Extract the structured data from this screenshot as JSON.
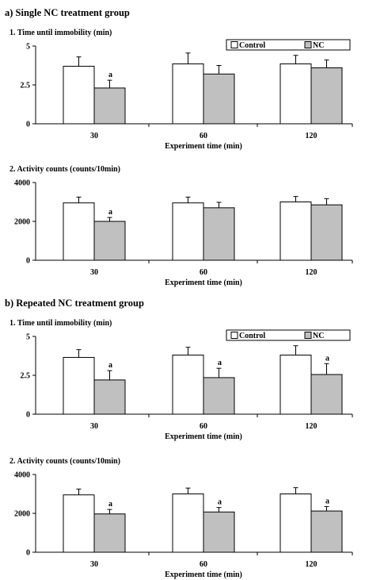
{
  "colors": {
    "control": "#ffffff",
    "nc": "#c0c0c0",
    "stroke": "#000000"
  },
  "sections": [
    {
      "title": "a) Single NC treatment group"
    },
    {
      "title": "b) Repeated NC treatment group"
    }
  ],
  "chart_data": [
    {
      "type": "bar",
      "subtitle": "1. Time until immobility (min)",
      "xlabel": "Experiment time (min)",
      "categories": [
        "30",
        "60",
        "120"
      ],
      "ylim": [
        0,
        5
      ],
      "yticks": [
        0,
        2.5,
        5
      ],
      "ytick_labels": [
        "0",
        "2.5",
        "5"
      ],
      "legend": true,
      "series": [
        {
          "name": "Control",
          "values": [
            3.7,
            3.85,
            3.85
          ],
          "errors": [
            0.6,
            0.7,
            0.55
          ]
        },
        {
          "name": "NC",
          "values": [
            2.3,
            3.2,
            3.6
          ],
          "errors": [
            0.5,
            0.55,
            0.5
          ]
        }
      ],
      "annotations": [
        {
          "series": 1,
          "category": 0,
          "text": "a"
        }
      ]
    },
    {
      "type": "bar",
      "subtitle": "2. Activity counts (counts/10min)",
      "xlabel": "Experiment time (min)",
      "categories": [
        "30",
        "60",
        "120"
      ],
      "ylim": [
        0,
        4000
      ],
      "yticks": [
        0,
        2000,
        4000
      ],
      "ytick_labels": [
        "0",
        "2000",
        "4000"
      ],
      "legend": false,
      "series": [
        {
          "name": "Control",
          "values": [
            2950,
            2950,
            3000
          ],
          "errors": [
            300,
            300,
            280
          ]
        },
        {
          "name": "NC",
          "values": [
            2000,
            2700,
            2850
          ],
          "errors": [
            200,
            280,
            320
          ]
        }
      ],
      "annotations": [
        {
          "series": 1,
          "category": 0,
          "text": "a"
        }
      ]
    },
    {
      "type": "bar",
      "subtitle": "1. Time until immobility (min)",
      "xlabel": "Experiment time (min)",
      "categories": [
        "30",
        "60",
        "120"
      ],
      "ylim": [
        0,
        5
      ],
      "yticks": [
        0,
        2.5,
        5
      ],
      "ytick_labels": [
        "0",
        "2.5",
        "5"
      ],
      "legend": true,
      "series": [
        {
          "name": "Control",
          "values": [
            3.65,
            3.8,
            3.8
          ],
          "errors": [
            0.5,
            0.5,
            0.6
          ]
        },
        {
          "name": "NC",
          "values": [
            2.2,
            2.35,
            2.55
          ],
          "errors": [
            0.6,
            0.6,
            0.7
          ]
        }
      ],
      "annotations": [
        {
          "series": 1,
          "category": 0,
          "text": "a"
        },
        {
          "series": 1,
          "category": 1,
          "text": "a"
        },
        {
          "series": 1,
          "category": 2,
          "text": "a"
        }
      ]
    },
    {
      "type": "bar",
      "subtitle": "2. Activity counts (counts/10min)",
      "xlabel": "Experiment time (min)",
      "categories": [
        "30",
        "60",
        "120"
      ],
      "ylim": [
        0,
        4000
      ],
      "yticks": [
        0,
        2000,
        4000
      ],
      "ytick_labels": [
        "0",
        "2000",
        "4000"
      ],
      "legend": false,
      "series": [
        {
          "name": "Control",
          "values": [
            2950,
            3000,
            3000
          ],
          "errors": [
            300,
            300,
            320
          ]
        },
        {
          "name": "NC",
          "values": [
            1970,
            2070,
            2120
          ],
          "errors": [
            230,
            230,
            230
          ]
        }
      ],
      "annotations": [
        {
          "series": 1,
          "category": 0,
          "text": "a"
        },
        {
          "series": 1,
          "category": 1,
          "text": "a"
        },
        {
          "series": 1,
          "category": 2,
          "text": "a"
        }
      ]
    }
  ]
}
